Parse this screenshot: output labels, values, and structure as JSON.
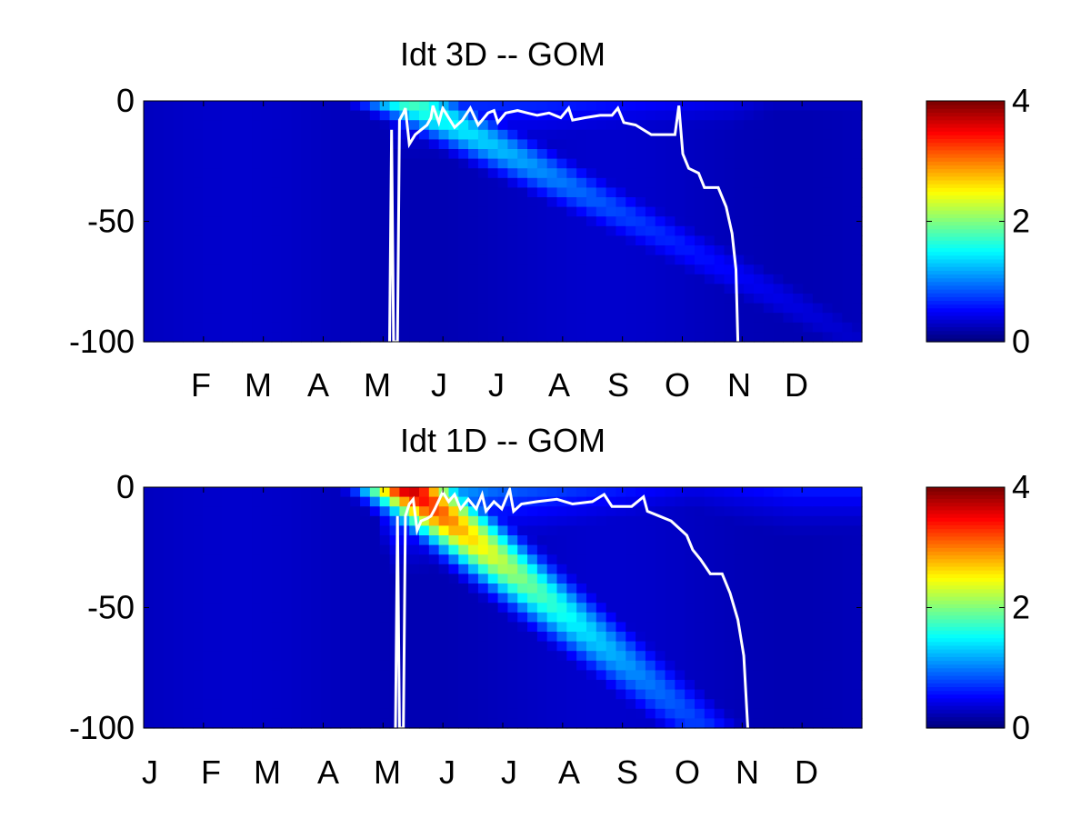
{
  "chart_data": [
    {
      "type": "heatmap",
      "title": "Idt 3D    -- GOM",
      "xlabel": "",
      "ylabel": "",
      "x_tick_labels": [
        "F",
        "M",
        "A",
        "M",
        "J",
        "J",
        "A",
        "S",
        "O",
        "N",
        "D"
      ],
      "y_ticks": [
        0,
        -50,
        -100
      ],
      "y_tick_labels": [
        "0",
        "-50",
        "-100"
      ],
      "ylim": [
        -100,
        0
      ],
      "colorbar": {
        "min": 0,
        "max": 4,
        "ticks": [
          "0",
          "2",
          "4"
        ],
        "colormap": "jet"
      },
      "max_value": 1.8,
      "bloom": {
        "start_day": 133,
        "slope_days_per_m": 2.3,
        "width_days": 25,
        "depth_decay_m": 55
      },
      "surface_values": [
        {
          "day": 130,
          "value": 1.1
        },
        {
          "day": 200,
          "value": 1.0
        },
        {
          "day": 300,
          "value": 0.6
        },
        {
          "day": 320,
          "value": 0.4
        }
      ],
      "white_line": [
        [
          125,
          -100
        ],
        [
          126,
          -12
        ],
        [
          127,
          -100
        ],
        [
          129,
          -100
        ],
        [
          130,
          -8
        ],
        [
          132,
          -5
        ],
        [
          133,
          -3
        ],
        [
          135,
          -18
        ],
        [
          138,
          -14
        ],
        [
          141,
          -12
        ],
        [
          144,
          -10
        ],
        [
          146,
          -7
        ],
        [
          147,
          -2
        ],
        [
          150,
          -9
        ],
        [
          152,
          -3
        ],
        [
          155,
          -7
        ],
        [
          158,
          -11
        ],
        [
          162,
          -8
        ],
        [
          166,
          -3
        ],
        [
          170,
          -10
        ],
        [
          175,
          -5
        ],
        [
          178,
          -4
        ],
        [
          180,
          -9
        ],
        [
          184,
          -5
        ],
        [
          190,
          -4
        ],
        [
          195,
          -5
        ],
        [
          200,
          -6
        ],
        [
          206,
          -5
        ],
        [
          212,
          -7
        ],
        [
          216,
          -3
        ],
        [
          218,
          -8
        ],
        [
          224,
          -7
        ],
        [
          232,
          -6
        ],
        [
          238,
          -6
        ],
        [
          241,
          -3
        ],
        [
          244,
          -9
        ],
        [
          250,
          -10
        ],
        [
          258,
          -14
        ],
        [
          265,
          -14
        ],
        [
          270,
          -14
        ],
        [
          272,
          -2
        ],
        [
          274,
          -22
        ],
        [
          277,
          -28
        ],
        [
          282,
          -30
        ],
        [
          285,
          -36
        ],
        [
          292,
          -36
        ],
        [
          296,
          -44
        ],
        [
          299,
          -55
        ],
        [
          301,
          -70
        ],
        [
          302,
          -100
        ]
      ]
    },
    {
      "type": "heatmap",
      "title": "Idt 1D    -- GOM",
      "xlabel": "",
      "ylabel": "",
      "x_tick_labels": [
        "J",
        "F",
        "M",
        "A",
        "M",
        "J",
        "J",
        "A",
        "S",
        "O",
        "N",
        "D"
      ],
      "y_ticks": [
        0,
        -50,
        -100
      ],
      "y_tick_labels": [
        "0",
        "-50",
        "-100"
      ],
      "ylim": [
        -100,
        0
      ],
      "colorbar": {
        "min": 0,
        "max": 4,
        "ticks": [
          "0",
          "2",
          "4"
        ],
        "colormap": "jet"
      },
      "max_value": 3.8,
      "bloom": {
        "start_day": 133,
        "slope_days_per_m": 1.5,
        "width_days": 22,
        "depth_decay_m": 60
      },
      "surface_values": [
        {
          "day": 128,
          "value": 2.4
        },
        {
          "day": 180,
          "value": 1.4
        },
        {
          "day": 280,
          "value": 0.6
        },
        {
          "day": 330,
          "value": 0.9
        }
      ],
      "white_line": [
        [
          128,
          -100
        ],
        [
          129,
          -12
        ],
        [
          130,
          -100
        ],
        [
          132,
          -100
        ],
        [
          133,
          -12
        ],
        [
          135,
          -7
        ],
        [
          137,
          -5
        ],
        [
          139,
          -18
        ],
        [
          141,
          -14
        ],
        [
          144,
          -13
        ],
        [
          146,
          -12
        ],
        [
          148,
          -9
        ],
        [
          152,
          -2
        ],
        [
          155,
          -6
        ],
        [
          158,
          -3
        ],
        [
          161,
          -9
        ],
        [
          165,
          -5
        ],
        [
          169,
          -9
        ],
        [
          172,
          -3
        ],
        [
          174,
          -10
        ],
        [
          178,
          -6
        ],
        [
          182,
          -9
        ],
        [
          186,
          -1
        ],
        [
          188,
          -10
        ],
        [
          192,
          -7
        ],
        [
          200,
          -6
        ],
        [
          210,
          -5
        ],
        [
          218,
          -7
        ],
        [
          228,
          -6
        ],
        [
          234,
          -3
        ],
        [
          238,
          -8
        ],
        [
          248,
          -8
        ],
        [
          254,
          -4
        ],
        [
          256,
          -10
        ],
        [
          262,
          -12
        ],
        [
          268,
          -14
        ],
        [
          272,
          -17
        ],
        [
          276,
          -20
        ],
        [
          279,
          -26
        ],
        [
          283,
          -30
        ],
        [
          288,
          -36
        ],
        [
          294,
          -36
        ],
        [
          298,
          -44
        ],
        [
          302,
          -55
        ],
        [
          305,
          -70
        ],
        [
          307,
          -100
        ]
      ]
    }
  ]
}
